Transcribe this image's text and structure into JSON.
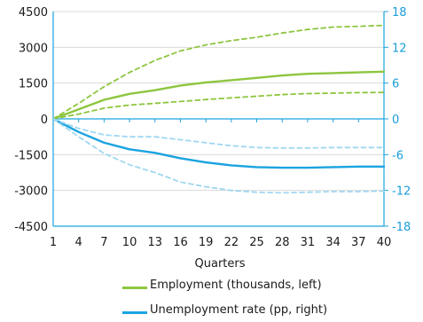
{
  "chart_data": {
    "type": "line",
    "title": "",
    "xlabel": "Quarters",
    "x": [
      1,
      4,
      7,
      10,
      13,
      16,
      19,
      22,
      25,
      28,
      31,
      34,
      37,
      40
    ],
    "x_ticks": [
      "1",
      "4",
      "7",
      "10",
      "13",
      "16",
      "19",
      "22",
      "25",
      "28",
      "31",
      "34",
      "37",
      "40"
    ],
    "y_left_ticks": [
      "4500",
      "3000",
      "1500",
      "0",
      "-1500",
      "-3000",
      "-4500"
    ],
    "y_right_ticks": [
      "18",
      "12",
      "6",
      "0",
      "-6",
      "-12",
      "-18"
    ],
    "ylim_left": [
      -4500,
      4500
    ],
    "ylim_right": [
      -18,
      18
    ],
    "grid": "horizontal",
    "legend_position": "bottom",
    "series": [
      {
        "name": "Employment (thousands, left)",
        "axis": "left",
        "style": "solid",
        "color": "#8dc63f",
        "values": [
          0,
          400,
          800,
          1050,
          1200,
          1400,
          1530,
          1620,
          1720,
          1820,
          1890,
          1920,
          1950,
          1980
        ]
      },
      {
        "name": "",
        "axis": "left",
        "style": "dashed",
        "color": "#8dc63f",
        "band": "upper",
        "values": [
          0,
          650,
          1350,
          1950,
          2450,
          2850,
          3100,
          3280,
          3420,
          3600,
          3750,
          3850,
          3880,
          3920
        ]
      },
      {
        "name": "",
        "axis": "left",
        "style": "dashed",
        "color": "#8dc63f",
        "band": "lower",
        "values": [
          0,
          200,
          450,
          580,
          650,
          730,
          810,
          880,
          950,
          1020,
          1060,
          1080,
          1100,
          1110
        ]
      },
      {
        "name": "Unemployment rate (pp, right)",
        "axis": "right",
        "style": "solid",
        "color": "#1aa3e0",
        "values": [
          0,
          -2.2,
          -4.0,
          -5.1,
          -5.7,
          -6.6,
          -7.3,
          -7.8,
          -8.1,
          -8.2,
          -8.2,
          -8.1,
          -8.0,
          -8.0
        ]
      },
      {
        "name": "",
        "axis": "right",
        "style": "dashed",
        "color": "#9fd8f0",
        "band": "upper",
        "values": [
          0,
          -1.6,
          -2.7,
          -3.0,
          -3.0,
          -3.5,
          -4.0,
          -4.5,
          -4.8,
          -4.9,
          -4.9,
          -4.8,
          -4.8,
          -4.8
        ]
      },
      {
        "name": "",
        "axis": "right",
        "style": "dashed",
        "color": "#9fd8f0",
        "band": "lower",
        "values": [
          0,
          -3.0,
          -5.8,
          -7.7,
          -9.0,
          -10.6,
          -11.4,
          -12.0,
          -12.3,
          -12.4,
          -12.3,
          -12.2,
          -12.2,
          -12.1
        ]
      }
    ]
  }
}
